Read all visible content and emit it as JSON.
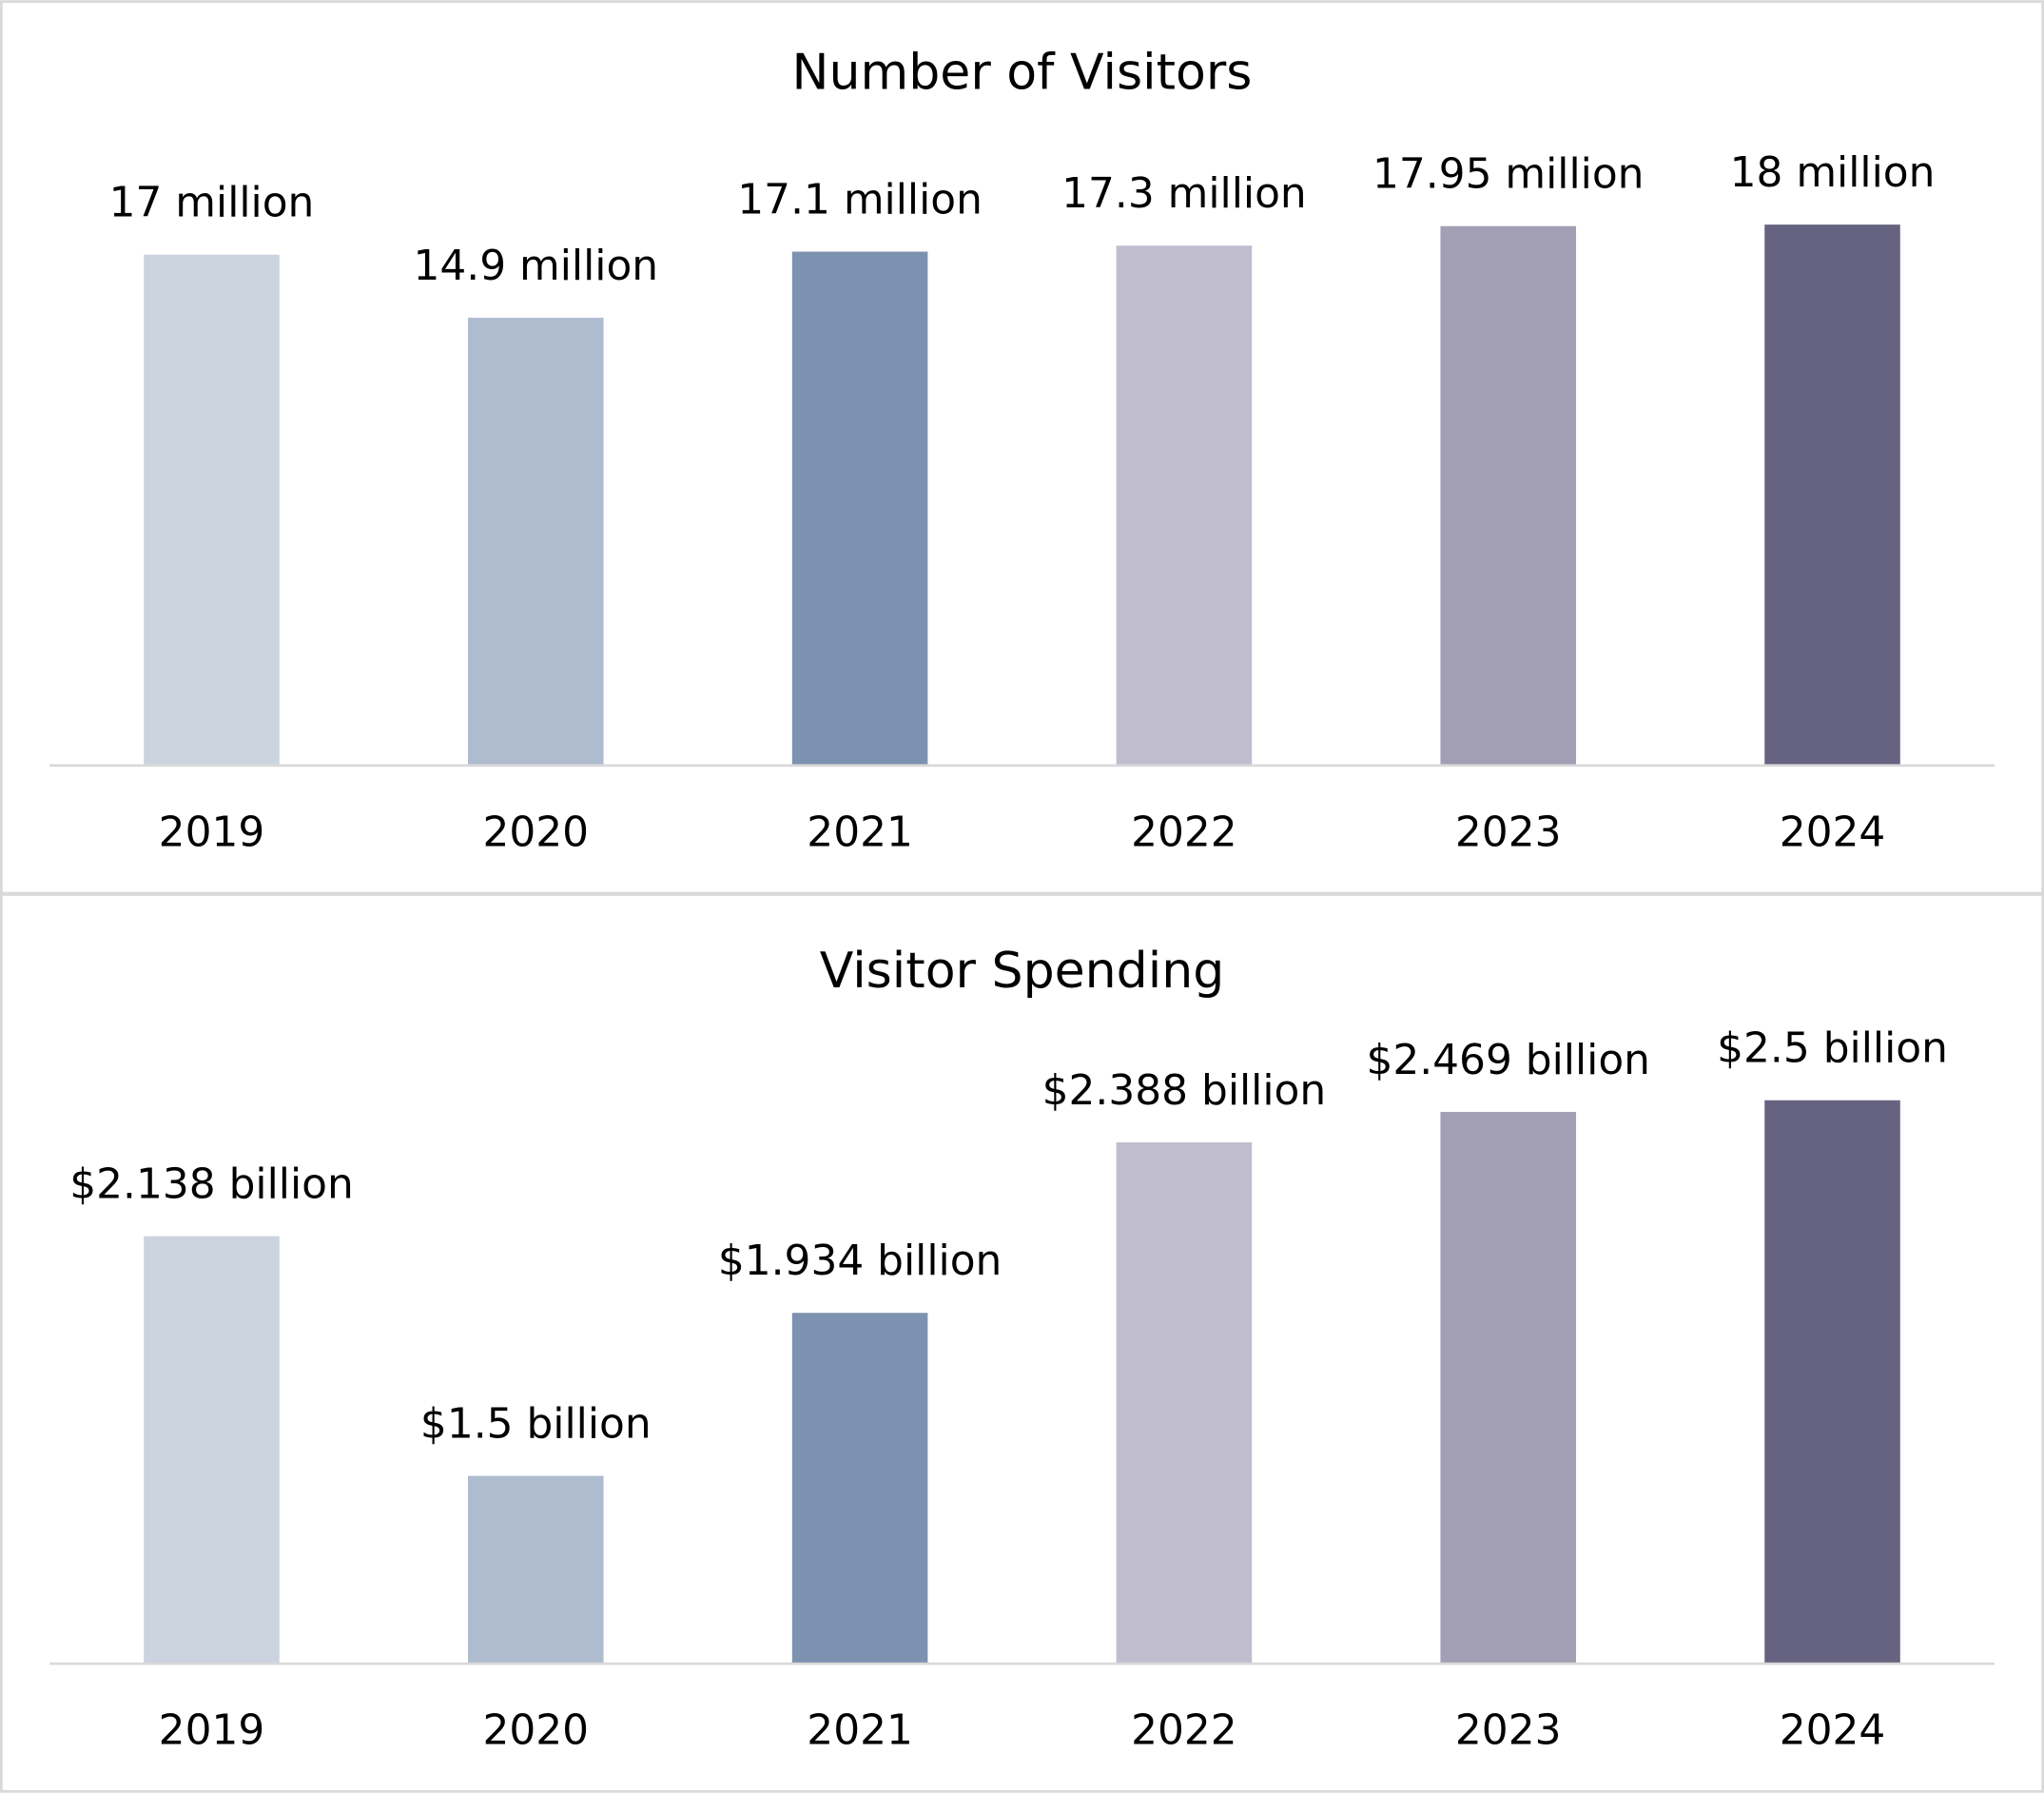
{
  "chart_data": [
    {
      "type": "bar",
      "title": "Number of Visitors",
      "categories": [
        "2019",
        "2020",
        "2021",
        "2022",
        "2023",
        "2024"
      ],
      "values": [
        17,
        14.9,
        17.1,
        17.3,
        17.95,
        18
      ],
      "value_labels": [
        "17 million",
        "14.9 million",
        "17.1 million",
        "17.3 million",
        "17.95 million",
        "18 million"
      ],
      "colors": [
        "#cbd3df",
        "#afbcd0",
        "#7d91b0",
        "#c0bdcf",
        "#a29fb5",
        "#666380"
      ],
      "ylim": [
        0,
        20
      ]
    },
    {
      "type": "bar",
      "title": "Visitor Spending",
      "categories": [
        "2019",
        "2020",
        "2021",
        "2022",
        "2023",
        "2024"
      ],
      "values": [
        2.138,
        1.5,
        1.934,
        2.388,
        2.469,
        2.5
      ],
      "value_labels": [
        "$2.138 billion",
        "$1.5 billion",
        "$1.934 billion",
        "$2.388 billion",
        "$2.469 billion",
        "$2.5 billion"
      ],
      "colors": [
        "#cbd3df",
        "#afbcd0",
        "#7d91b0",
        "#c0bdcf",
        "#a29fb5",
        "#666380"
      ],
      "ylim": [
        1,
        2.6
      ]
    }
  ]
}
